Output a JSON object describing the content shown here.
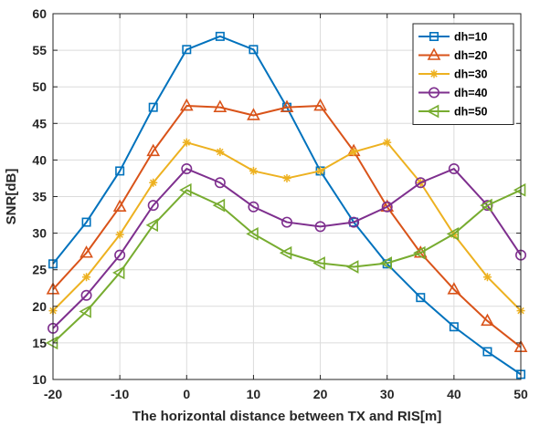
{
  "chart_data": {
    "type": "line",
    "title": "",
    "xlabel": "The horizontal distance between TX and RIS[m]",
    "ylabel": "SNR[dB]",
    "x": [
      -20,
      -15,
      -10,
      -5,
      0,
      5,
      10,
      15,
      20,
      25,
      30,
      35,
      40,
      45,
      50
    ],
    "xlim": [
      -20,
      50
    ],
    "ylim": [
      10,
      60
    ],
    "xticks": [
      "-20",
      "-10",
      "0",
      "10",
      "20",
      "30",
      "40",
      "50"
    ],
    "yticks": [
      "10",
      "15",
      "20",
      "25",
      "30",
      "35",
      "40",
      "45",
      "50",
      "55",
      "60"
    ],
    "grid": true,
    "legend_position": "top-right",
    "series": [
      {
        "name": "dh=10",
        "color": "#0072BD",
        "marker": "square",
        "values": [
          25.8,
          31.5,
          38.5,
          47.2,
          55.1,
          56.9,
          55.1,
          47.2,
          38.5,
          31.5,
          25.8,
          21.2,
          17.2,
          13.8,
          10.7
        ]
      },
      {
        "name": "dh=20",
        "color": "#D95319",
        "marker": "triangle-up",
        "values": [
          22.3,
          27.3,
          33.6,
          41.2,
          47.4,
          47.2,
          46.1,
          47.2,
          47.4,
          41.2,
          33.6,
          27.3,
          22.3,
          18.0,
          14.4
        ]
      },
      {
        "name": "dh=30",
        "color": "#EDB120",
        "marker": "asterisk",
        "values": [
          19.4,
          24.0,
          29.8,
          36.9,
          42.4,
          41.1,
          38.5,
          37.5,
          38.5,
          41.1,
          42.4,
          36.9,
          29.8,
          24.0,
          19.4
        ]
      },
      {
        "name": "dh=40",
        "color": "#7E2F8E",
        "marker": "circle",
        "values": [
          17.0,
          21.5,
          27.0,
          33.8,
          38.8,
          36.9,
          33.6,
          31.5,
          30.9,
          31.5,
          33.6,
          36.9,
          38.8,
          33.8,
          27.0
        ]
      },
      {
        "name": "dh=50",
        "color": "#77AC30",
        "marker": "triangle-left",
        "values": [
          15.0,
          19.3,
          24.6,
          31.1,
          35.9,
          33.8,
          29.9,
          27.3,
          25.9,
          25.4,
          25.9,
          27.3,
          29.9,
          33.8,
          35.9
        ]
      }
    ]
  }
}
